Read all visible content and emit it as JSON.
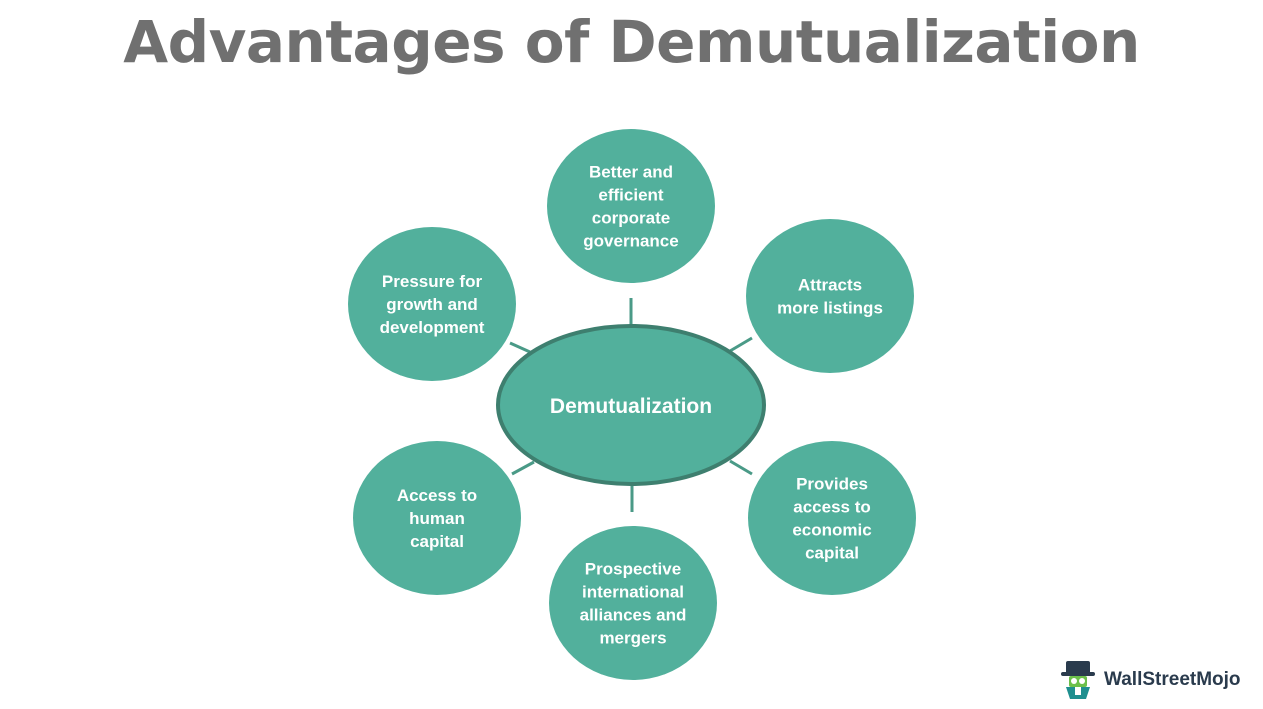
{
  "title": "Advantages of Demutualization",
  "center": {
    "label": "Demutualization"
  },
  "nodes": [
    {
      "id": "governance",
      "lines": [
        "Better and",
        "efficient",
        "corporate",
        "governance"
      ]
    },
    {
      "id": "listings",
      "lines": [
        "Attracts",
        "more listings"
      ]
    },
    {
      "id": "economic-capital",
      "lines": [
        "Provides",
        "access to",
        "economic",
        "capital"
      ]
    },
    {
      "id": "alliances",
      "lines": [
        "Prospective",
        "international",
        "alliances and",
        "mergers"
      ]
    },
    {
      "id": "human-capital",
      "lines": [
        "Access to",
        "human",
        "capital"
      ]
    },
    {
      "id": "growth",
      "lines": [
        "Pressure for",
        "growth and",
        "development"
      ]
    }
  ],
  "colors": {
    "node_fill": "#52b09c",
    "center_stroke": "#3e7f6f",
    "connector": "#4a9a87",
    "title": "#707070"
  },
  "logo": {
    "text": "WallStreetMojo",
    "icon": "mascot-icon"
  }
}
